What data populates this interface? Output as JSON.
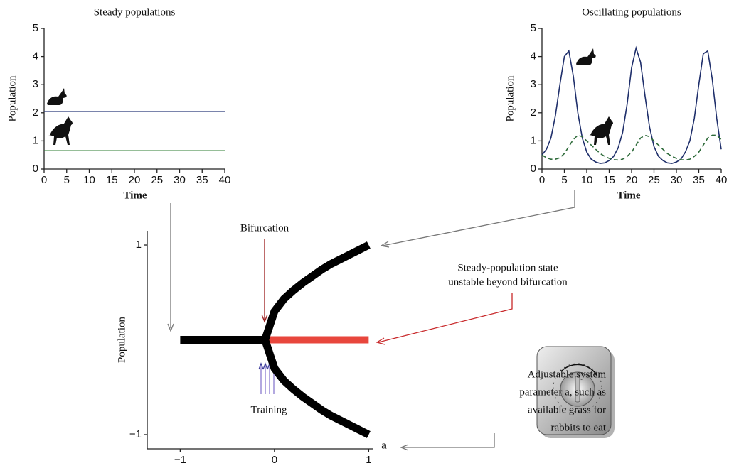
{
  "chart_data": [
    {
      "type": "line",
      "title": "Steady populations",
      "xlabel": "Time",
      "ylabel": "Population",
      "xlim": [
        0,
        40
      ],
      "ylim": [
        0,
        5
      ],
      "xticks": [
        0,
        5,
        10,
        15,
        20,
        25,
        30,
        35,
        40
      ],
      "yticks": [
        0,
        1,
        2,
        3,
        4,
        5
      ],
      "x": [
        0,
        40
      ],
      "series": [
        {
          "color": "#2b3a7a",
          "values": [
            2.05,
            2.05
          ]
        },
        {
          "color": "#2e7d32",
          "values": [
            0.65,
            0.65
          ]
        }
      ]
    },
    {
      "type": "line",
      "title": "Oscillating populations",
      "xlabel": "Time",
      "ylabel": "Population",
      "xlim": [
        0,
        40
      ],
      "ylim": [
        0,
        5
      ],
      "xticks": [
        0,
        5,
        10,
        15,
        20,
        25,
        30,
        35,
        40
      ],
      "yticks": [
        0,
        1,
        2,
        3,
        4,
        5
      ],
      "x": [
        0,
        1,
        2,
        3,
        4,
        5,
        6,
        7,
        8,
        9,
        10,
        11,
        12,
        13,
        14,
        15,
        16,
        17,
        18,
        19,
        20,
        21,
        22,
        23,
        24,
        25,
        26,
        27,
        28,
        29,
        30,
        31,
        32,
        33,
        34,
        35,
        36,
        37,
        38,
        39,
        40
      ],
      "series": [
        {
          "color": "#1f2f6b",
          "values": [
            0.5,
            0.7,
            1.1,
            1.9,
            3.0,
            4.0,
            4.2,
            3.3,
            2.0,
            1.1,
            0.6,
            0.35,
            0.25,
            0.2,
            0.22,
            0.3,
            0.45,
            0.75,
            1.3,
            2.3,
            3.6,
            4.3,
            3.8,
            2.6,
            1.5,
            0.8,
            0.45,
            0.3,
            0.22,
            0.2,
            0.25,
            0.35,
            0.6,
            1.0,
            1.8,
            3.0,
            4.1,
            4.2,
            3.2,
            1.8,
            0.7
          ]
        },
        {
          "color": "#2e6b3a",
          "dashed": true,
          "values": [
            0.5,
            0.4,
            0.35,
            0.35,
            0.4,
            0.55,
            0.8,
            1.05,
            1.2,
            1.15,
            1.0,
            0.85,
            0.7,
            0.55,
            0.45,
            0.38,
            0.33,
            0.32,
            0.35,
            0.45,
            0.6,
            0.85,
            1.1,
            1.2,
            1.15,
            1.0,
            0.85,
            0.7,
            0.55,
            0.45,
            0.38,
            0.33,
            0.32,
            0.35,
            0.45,
            0.6,
            0.85,
            1.1,
            1.2,
            1.2,
            1.05
          ]
        }
      ]
    },
    {
      "type": "line",
      "xlabel": "a",
      "ylabel": "Population",
      "xlim": [
        -1.35,
        1.05
      ],
      "ylim": [
        -1.15,
        1.15
      ],
      "xticks": [
        {
          "value": -1,
          "label": "−1"
        },
        0,
        1
      ],
      "yticks": [
        {
          "value": -1,
          "label": "−1"
        },
        1
      ],
      "series": [
        {
          "color": "#000000",
          "x": [
            -1,
            -0.1
          ],
          "values": [
            0,
            0
          ]
        },
        {
          "color": "#e8463c",
          "x": [
            -0.1,
            1
          ],
          "values": [
            0,
            0
          ]
        },
        {
          "color": "#000000",
          "x": [
            -0.1,
            0,
            0.1,
            0.2,
            0.3,
            0.4,
            0.5,
            0.6,
            0.7,
            0.8,
            0.9,
            1
          ],
          "values": [
            0,
            0.3,
            0.43,
            0.52,
            0.6,
            0.67,
            0.74,
            0.8,
            0.85,
            0.9,
            0.95,
            1.0
          ]
        },
        {
          "color": "#000000",
          "x": [
            -0.1,
            0,
            0.1,
            0.2,
            0.3,
            0.4,
            0.5,
            0.6,
            0.7,
            0.8,
            0.9,
            1
          ],
          "values": [
            0,
            -0.3,
            -0.43,
            -0.52,
            -0.6,
            -0.67,
            -0.74,
            -0.8,
            -0.85,
            -0.9,
            -0.95,
            -1.0
          ]
        }
      ],
      "annotations": [
        [
          "Bifurcation"
        ],
        [
          "Steady-population state",
          "unstable  beyond bifurcation"
        ],
        [
          "Training"
        ],
        [
          "Adjustable system",
          "parameter a, such as",
          "available grass for",
          "rabbits to eat"
        ]
      ]
    }
  ]
}
